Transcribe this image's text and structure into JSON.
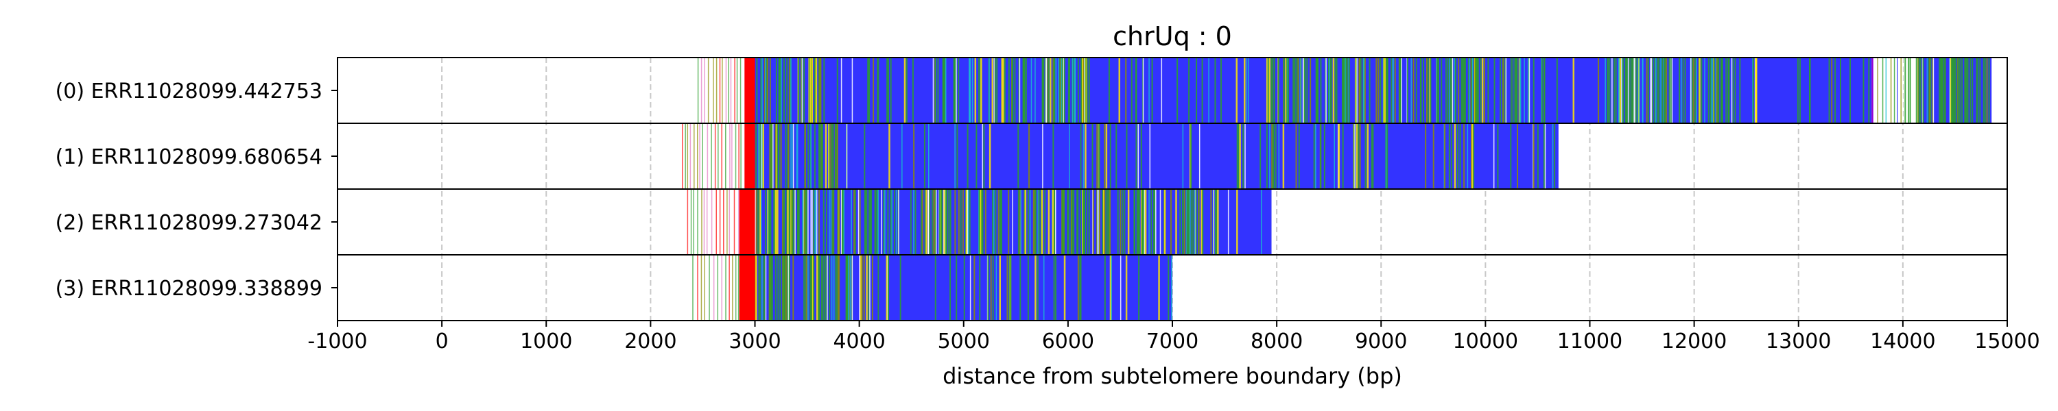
{
  "chart_data": {
    "type": "read_track",
    "title": "chrUq : 0",
    "xlabel": "distance from subtelomere boundary (bp)",
    "ylabel": "",
    "xlim": [
      -1000,
      15000
    ],
    "xticks": [
      -1000,
      0,
      1000,
      2000,
      3000,
      4000,
      5000,
      6000,
      7000,
      8000,
      9000,
      10000,
      11000,
      12000,
      13000,
      14000,
      15000
    ],
    "xtick_labels": [
      "-1000",
      "0",
      "1000",
      "2000",
      "3000",
      "4000",
      "5000",
      "6000",
      "7000",
      "8000",
      "9000",
      "10000",
      "11000",
      "12000",
      "13000",
      "14000",
      "15000"
    ],
    "grid": "vertical dashed",
    "colors": {
      "main": "#3333ff",
      "green": "#2ca02c",
      "olive": "#8c8c00",
      "yellow": "#ffe800",
      "red": "#ff0000",
      "pink": "#e377c2",
      "cyan": "#17becf",
      "purple": "#9400d3",
      "white": "#ffffff",
      "grid": "#c8c8c8"
    },
    "reads": [
      {
        "label": "(0) ERR11028099.442753",
        "start": 2900,
        "end": 14850,
        "scatter_start": 2450,
        "red_ranges": [
          [
            2900,
            3000
          ]
        ],
        "gap_ranges": [
          [
            13700,
            14000
          ]
        ],
        "dense_ranges": [
          [
            3000,
            3700
          ],
          [
            4700,
            6200
          ],
          [
            7900,
            10600
          ],
          [
            11200,
            12600
          ],
          [
            14100,
            14850
          ]
        ],
        "blue_ranges": [
          [
            3000,
            13700
          ],
          [
            14150,
            14850
          ]
        ]
      },
      {
        "label": "(1) ERR11028099.680654",
        "start": 2950,
        "end": 10700,
        "scatter_start": 2300,
        "red_ranges": [
          [
            2900,
            3000
          ]
        ],
        "gap_ranges": [],
        "dense_ranges": [
          [
            3000,
            3800
          ]
        ],
        "blue_ranges": [
          [
            3000,
            10700
          ]
        ]
      },
      {
        "label": "(2) ERR11028099.273042",
        "start": 2900,
        "end": 7950,
        "scatter_start": 2350,
        "red_ranges": [
          [
            2850,
            3000
          ]
        ],
        "gap_ranges": [],
        "dense_ranges": [
          [
            3000,
            7300
          ]
        ],
        "blue_ranges": [
          [
            3000,
            7950
          ]
        ]
      },
      {
        "label": "(3) ERR11028099.338899",
        "start": 2900,
        "end": 7000,
        "scatter_start": 2400,
        "red_ranges": [
          [
            2850,
            3000
          ]
        ],
        "gap_ranges": [],
        "dense_ranges": [
          [
            3000,
            4100
          ]
        ],
        "blue_ranges": [
          [
            3000,
            7000
          ]
        ]
      }
    ]
  }
}
